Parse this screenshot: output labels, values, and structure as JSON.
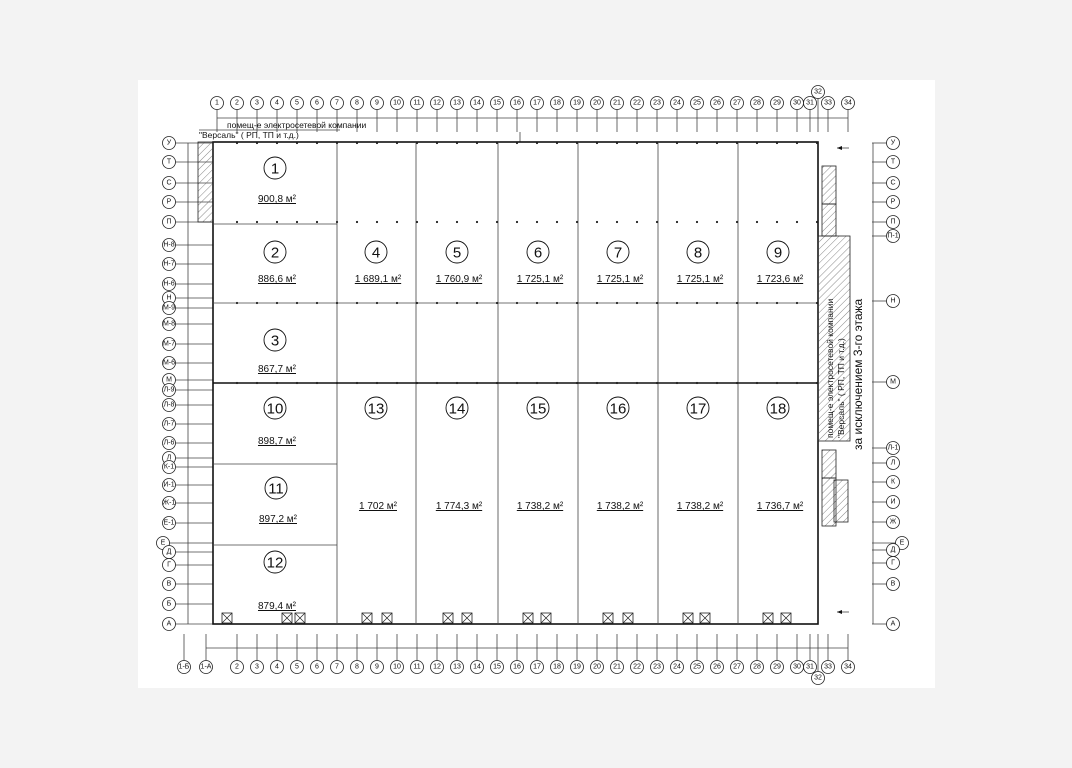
{
  "notes": {
    "top_left_line1": "помещ-е электросетевой компании",
    "top_left_line2": "\"Версаль\" ( РП, ТП и т.д.)",
    "right_line1": "помещ-е электросетевой компании",
    "right_line2": "\"Версаль\" ( РП, ТП и т.д.)",
    "right_exception": "за исключением 3-го этажа"
  },
  "axes": {
    "top": [
      "1",
      "2",
      "3",
      "4",
      "5",
      "6",
      "7",
      "8",
      "9",
      "10",
      "11",
      "12",
      "13",
      "14",
      "15",
      "16",
      "17",
      "18",
      "19",
      "20",
      "21",
      "22",
      "23",
      "24",
      "25",
      "26",
      "27",
      "28",
      "29",
      "30",
      "31",
      "32",
      "33",
      "34"
    ],
    "bottom": [
      "1-Б",
      "1-А",
      "2",
      "3",
      "4",
      "5",
      "6",
      "7",
      "8",
      "9",
      "10",
      "11",
      "12",
      "13",
      "14",
      "15",
      "16",
      "17",
      "18",
      "19",
      "20",
      "21",
      "22",
      "23",
      "24",
      "25",
      "26",
      "27",
      "28",
      "29",
      "30",
      "31",
      "32",
      "33",
      "34"
    ],
    "left": [
      "У",
      "Т",
      "С",
      "Р",
      "П",
      "Н-8",
      "Н-7",
      "Н-6",
      "Н",
      "М-9",
      "М-8",
      "М-7",
      "М-6",
      "М",
      "Л-9",
      "Л-8",
      "Л-7",
      "Л-6",
      "Л",
      "К-1",
      "И-1",
      "Ж-1",
      "Е-1",
      "Е",
      "Д",
      "Г",
      "В",
      "Б",
      "А"
    ],
    "right": [
      "У",
      "Т",
      "С",
      "Р",
      "П",
      "П-1",
      "Н",
      "М",
      "Л-1",
      "Л",
      "К",
      "И",
      "Ж",
      "Е",
      "Д",
      "Г",
      "В",
      "А"
    ]
  },
  "rooms": [
    {
      "number": "1",
      "area": "900,8 м²"
    },
    {
      "number": "2",
      "area": "886,6 м²"
    },
    {
      "number": "3",
      "area": "867,7 м²"
    },
    {
      "number": "4",
      "area": "1 689,1 м²"
    },
    {
      "number": "5",
      "area": "1 760,9 м²"
    },
    {
      "number": "6",
      "area": "1 725,1 м²"
    },
    {
      "number": "7",
      "area": "1 725,1 м²"
    },
    {
      "number": "8",
      "area": "1 725,1 м²"
    },
    {
      "number": "9",
      "area": "1 723,6 м²"
    },
    {
      "number": "10",
      "area": "898,7 м²"
    },
    {
      "number": "11",
      "area": "897,2 м²"
    },
    {
      "number": "12",
      "area": "879,4 м²"
    },
    {
      "number": "13",
      "area": "1 702 м²"
    },
    {
      "number": "14",
      "area": "1 774,3 м²"
    },
    {
      "number": "15",
      "area": "1 738,2 м²"
    },
    {
      "number": "16",
      "area": "1 738,2 м²"
    },
    {
      "number": "17",
      "area": "1 738,2 м²"
    },
    {
      "number": "18",
      "area": "1 736,7 м²"
    }
  ]
}
